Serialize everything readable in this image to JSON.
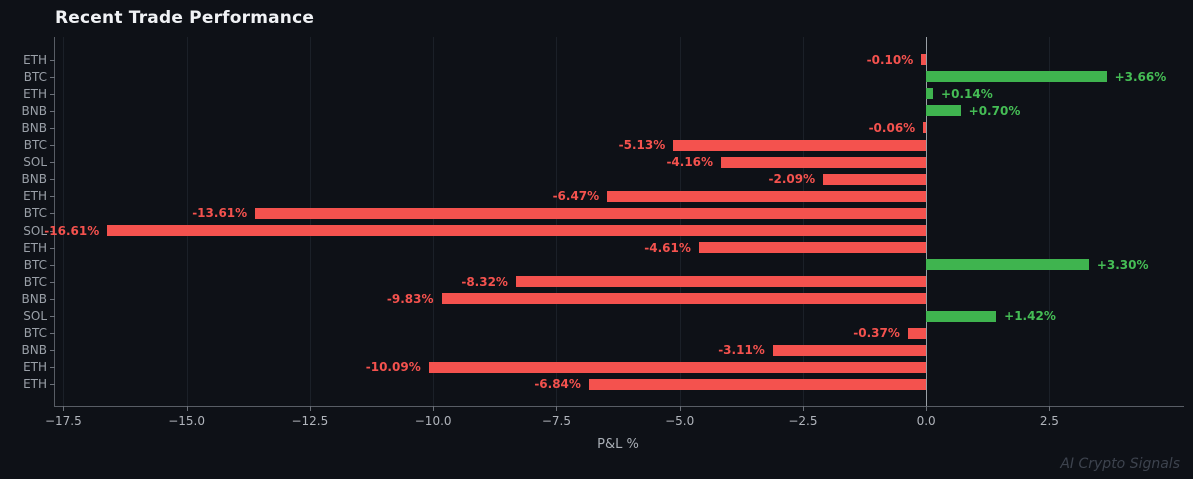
{
  "title": "Recent Trade Performance",
  "x_axis_title": "P&L %",
  "watermark": "AI Crypto Signals",
  "colors": {
    "background": "#0e1117",
    "positive_bar": "#3fb44f",
    "positive_label": "#45bd55",
    "negative_bar": "#f4524e",
    "negative_label": "#f4524e",
    "title_text": "#f0f2f5",
    "axis_tick_text": "#b0b4bb",
    "category_text": "#9aa0a8",
    "spine": "#585d65",
    "zero_line": "#9aa0a6",
    "gridline": "#1b2028",
    "watermark_text": "#3d434e"
  },
  "chart_data": {
    "type": "bar",
    "orientation": "horizontal",
    "title": "Recent Trade Performance",
    "xlabel": "P&L %",
    "ylabel": "",
    "categories": [
      "ETH",
      "BTC",
      "ETH",
      "BNB",
      "BNB",
      "BTC",
      "SOL",
      "BNB",
      "ETH",
      "BTC",
      "SOL",
      "ETH",
      "BTC",
      "BTC",
      "BNB",
      "SOL",
      "BTC",
      "BNB",
      "ETH",
      "ETH"
    ],
    "values": [
      -0.1,
      3.66,
      0.14,
      0.7,
      -0.06,
      -5.13,
      -4.16,
      -2.09,
      -6.47,
      -13.61,
      -16.61,
      -4.61,
      3.3,
      -8.32,
      -9.83,
      1.42,
      -0.37,
      -3.11,
      -10.09,
      -6.84
    ],
    "value_labels": [
      "-0.10%",
      "+3.66%",
      "+0.14%",
      "+0.70%",
      "-0.06%",
      "-5.13%",
      "-4.16%",
      "-2.09%",
      "-6.47%",
      "-13.61%",
      "-16.61%",
      "-4.61%",
      "+3.30%",
      "-8.32%",
      "-9.83%",
      "+1.42%",
      "-0.37%",
      "-3.11%",
      "-10.09%",
      "-6.84%"
    ],
    "xlim": [
      -17.67,
      5.23
    ],
    "xticks": [
      -17.5,
      -15.0,
      -12.5,
      -10.0,
      -7.5,
      -5.0,
      -2.5,
      0.0,
      2.5
    ],
    "xtick_labels": [
      "−17.5",
      "−15.0",
      "−12.5",
      "−10.0",
      "−7.5",
      "−5.0",
      "−2.5",
      "0.0",
      "2.5"
    ],
    "grid": "vertical-faint",
    "zero_reference_line": true,
    "legend": "none"
  }
}
